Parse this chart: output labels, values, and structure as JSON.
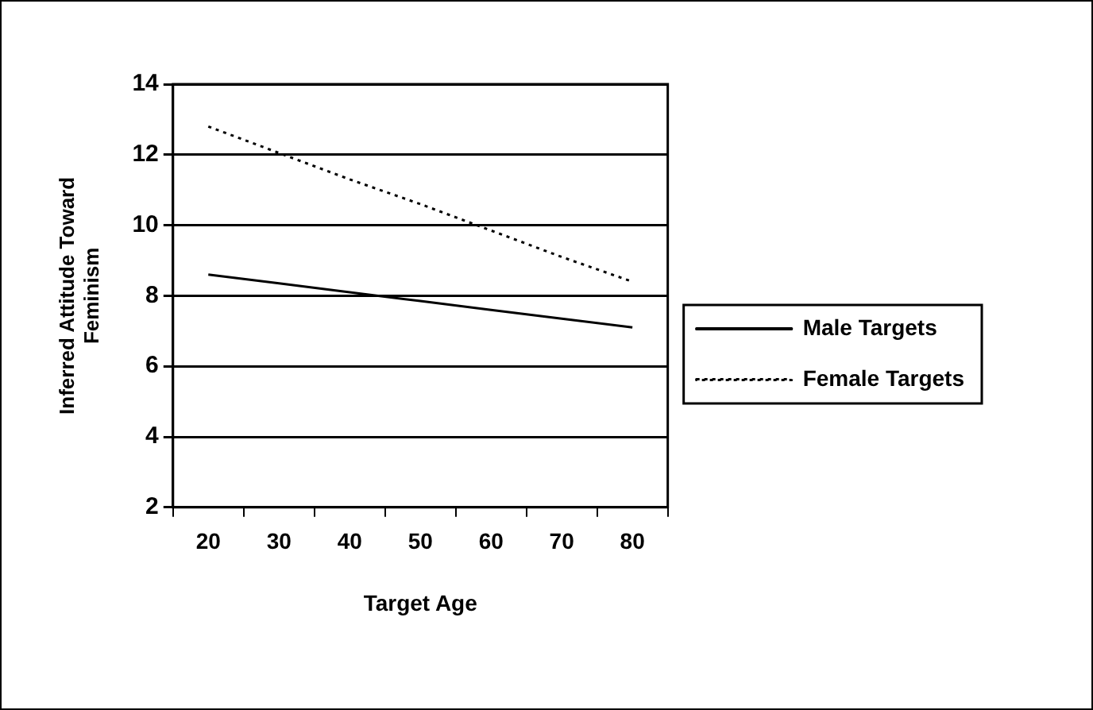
{
  "chart_data": {
    "type": "line",
    "xlabel": "Target Age",
    "ylabel": "Inferred Attitude Toward Feminism",
    "categories": [
      "20",
      "30",
      "40",
      "50",
      "60",
      "70",
      "80"
    ],
    "series": [
      {
        "name": "Male Targets",
        "color": "#000000",
        "line_style": "solid",
        "values": [
          8.6,
          8.35,
          8.1,
          7.85,
          7.6,
          7.35,
          7.1
        ]
      },
      {
        "name": "Female Targets",
        "color": "#000000",
        "line_style": "dotted",
        "values": [
          12.8,
          12.05,
          11.3,
          10.6,
          9.85,
          9.1,
          8.4
        ]
      }
    ],
    "ylim": [
      2,
      14
    ],
    "yticks": [
      2,
      4,
      6,
      8,
      10,
      12,
      14
    ],
    "grid": "y",
    "legend": "right",
    "marker": "none"
  }
}
